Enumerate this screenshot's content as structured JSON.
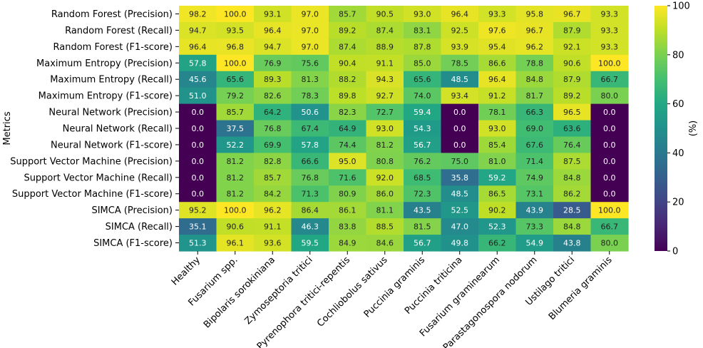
{
  "chart_data": {
    "type": "heatmap",
    "ylabel": "Metrics",
    "rows": [
      "Random Forest (Precision)",
      "Random Forest (Recall)",
      "Random Forest (F1-score)",
      "Maximum Entropy (Precision)",
      "Maximum Entropy (Recall)",
      "Maximum Entropy (F1-score)",
      "Neural Network (Precision)",
      "Neural Network (Recall)",
      "Neural Network (F1-score)",
      "Support Vector Machine (Precision)",
      "Support Vector Machine (Recall)",
      "Support Vector Machine (F1-score)",
      "SIMCA (Precision)",
      "SIMCA (Recall)",
      "SIMCA (F1-score)"
    ],
    "columns": [
      "Healthy",
      "Fusarium spp.",
      "Bipolaris sorokiniana",
      "Zymoseptoria tritici",
      "Pyrenophora tritici-repentis",
      "Cochliobolus sativus",
      "Puccinia graminis",
      "Puccinia triticina",
      "Fusarium graminearum",
      "Parastagonospora nodorum",
      "Ustilago tritici",
      "Blumeria graminis"
    ],
    "values": [
      [
        98.2,
        100.0,
        93.1,
        97.0,
        85.7,
        90.5,
        93.0,
        96.4,
        93.3,
        95.8,
        96.7,
        93.3
      ],
      [
        94.7,
        93.5,
        96.4,
        97.0,
        89.2,
        87.4,
        83.1,
        92.5,
        97.6,
        96.7,
        87.9,
        93.3
      ],
      [
        96.4,
        96.8,
        94.7,
        97.0,
        87.4,
        88.9,
        87.8,
        93.9,
        95.4,
        96.2,
        92.1,
        93.3
      ],
      [
        57.8,
        100.0,
        76.9,
        75.6,
        90.4,
        91.1,
        85.0,
        78.5,
        86.6,
        78.8,
        90.6,
        100.0
      ],
      [
        45.6,
        65.6,
        89.3,
        81.3,
        88.2,
        94.3,
        65.6,
        48.5,
        96.4,
        84.8,
        87.9,
        66.7
      ],
      [
        51.0,
        79.2,
        82.6,
        78.3,
        89.8,
        92.7,
        74.0,
        93.4,
        91.2,
        81.7,
        89.2,
        80.0
      ],
      [
        0.0,
        85.7,
        64.2,
        50.6,
        82.3,
        72.7,
        59.4,
        0.0,
        78.1,
        66.3,
        96.5,
        0.0
      ],
      [
        0.0,
        37.5,
        76.8,
        67.4,
        64.9,
        93.0,
        54.3,
        0.0,
        93.0,
        69.0,
        63.6,
        0.0
      ],
      [
        0.0,
        52.2,
        69.9,
        57.8,
        74.4,
        81.2,
        56.7,
        0.0,
        85.4,
        67.6,
        76.4,
        0.0
      ],
      [
        0.0,
        81.2,
        82.8,
        66.6,
        95.0,
        80.8,
        76.2,
        75.0,
        81.0,
        71.4,
        87.5,
        0.0
      ],
      [
        0.0,
        81.2,
        85.7,
        76.8,
        71.6,
        92.0,
        68.5,
        35.8,
        59.2,
        74.9,
        84.8,
        0.0
      ],
      [
        0.0,
        81.2,
        84.2,
        71.3,
        80.9,
        86.0,
        72.3,
        48.5,
        86.5,
        73.1,
        86.2,
        0.0
      ],
      [
        95.2,
        100.0,
        96.2,
        86.4,
        86.1,
        81.1,
        43.5,
        52.5,
        90.2,
        43.9,
        28.5,
        100.0
      ],
      [
        35.1,
        90.6,
        91.1,
        46.3,
        83.8,
        88.5,
        81.5,
        47.0,
        52.3,
        73.3,
        84.8,
        66.7
      ],
      [
        51.3,
        96.1,
        93.6,
        59.5,
        84.9,
        84.6,
        56.7,
        49.8,
        66.2,
        54.9,
        43.8,
        80.0
      ]
    ],
    "value_format": "0.0",
    "colormap": "viridis",
    "vmin": 0,
    "vmax": 100,
    "colorbar": {
      "label": "(%)",
      "ticks": [
        0,
        20,
        40,
        60,
        80,
        100
      ]
    },
    "grid": false,
    "legend": "colorbar-right"
  }
}
